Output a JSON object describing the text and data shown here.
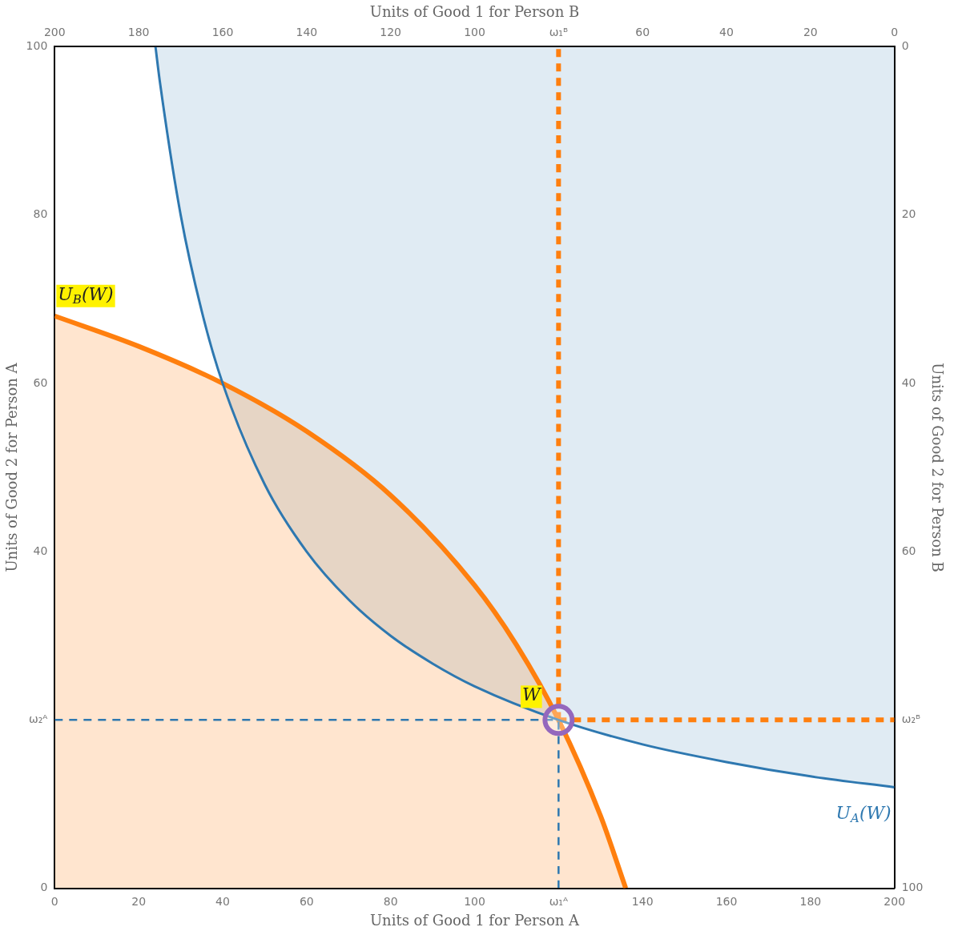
{
  "chart_data": {
    "type": "line",
    "xlabel": "Units of Good 1 for Person A",
    "x2label": "Units of Good 1 for Person B",
    "ylabel": "Units of Good 2 for Person A",
    "y2label": "Units of Good 2 for Person B",
    "xlim": [
      0,
      200
    ],
    "xticks": [
      0,
      20,
      40,
      60,
      80,
      100,
      {
        "value": 120,
        "label": "ω₁ᴬ"
      },
      140,
      160,
      180,
      200
    ],
    "x2lim": [
      200,
      0
    ],
    "x2ticks": [
      200,
      180,
      160,
      140,
      120,
      100,
      {
        "value": 80,
        "label": "ω₁ᴮ"
      },
      60,
      40,
      20,
      0
    ],
    "ylim": [
      0,
      100
    ],
    "yticks": [
      0,
      {
        "value": 20,
        "label": "ω₂ᴬ"
      },
      40,
      60,
      80,
      100
    ],
    "y2lim": [
      100,
      0
    ],
    "y2ticks": [
      0,
      20,
      40,
      60,
      {
        "value": 80,
        "label": "ω₂ᴮ"
      },
      100
    ],
    "grid": false,
    "legend": false,
    "marker": "none",
    "series": [
      {
        "type": "line",
        "color": "#2e78b0",
        "x": [
          24,
          25,
          30,
          35,
          40,
          50,
          60,
          70,
          80,
          90,
          100,
          120,
          140,
          160,
          180,
          200
        ],
        "values": [
          100,
          96,
          80,
          68.6,
          60,
          48,
          40,
          34.3,
          30,
          26.7,
          24,
          20,
          17.1,
          15,
          13.3,
          12
        ],
        "lower": [
          100,
          96,
          80,
          68.6,
          60,
          48,
          40,
          34.3,
          30,
          26.7,
          24,
          20,
          17.1,
          15,
          13.3,
          12
        ],
        "upper": [
          100,
          100,
          100,
          100,
          100,
          100,
          100,
          100,
          100,
          100,
          100,
          100,
          100,
          100,
          100,
          100
        ]
      },
      {
        "type": "area",
        "color": "#ff7f0e",
        "x": [
          0,
          20,
          40,
          60,
          80,
          100,
          110,
          120,
          130,
          136
        ],
        "values": [
          68,
          64.4,
          60,
          54.3,
          46.7,
          36,
          28.9,
          20,
          8.6,
          0
        ]
      },
      {
        "type": "line",
        "color": "#2e78b0",
        "line_style": "dashed",
        "x": [
          0,
          120
        ],
        "values": [
          20,
          20
        ]
      },
      {
        "type": "line",
        "color": "#2e78b0",
        "line_style": "dashed",
        "x": [
          120,
          120
        ],
        "values": [
          0,
          20
        ]
      },
      {
        "type": "line",
        "color": "#ff7f0e",
        "line_style": "dashed",
        "x": [
          120,
          200
        ],
        "values": [
          20,
          20
        ]
      },
      {
        "type": "line",
        "color": "#ff7f0e",
        "line_style": "dashed",
        "x": [
          120,
          120
        ],
        "values": [
          20,
          100
        ]
      },
      {
        "type": "scatter",
        "color": "#9467bd",
        "marker": "circle",
        "x": [
          120
        ],
        "values": [
          20
        ]
      }
    ],
    "annotations": [
      {
        "text": "U$_{B}$(W)",
        "x": 0,
        "y": 68
      },
      {
        "text": "U$_{A}$(W)",
        "x": 200,
        "y": 12
      },
      {
        "text": "W",
        "x": 120,
        "y": 20
      }
    ]
  }
}
